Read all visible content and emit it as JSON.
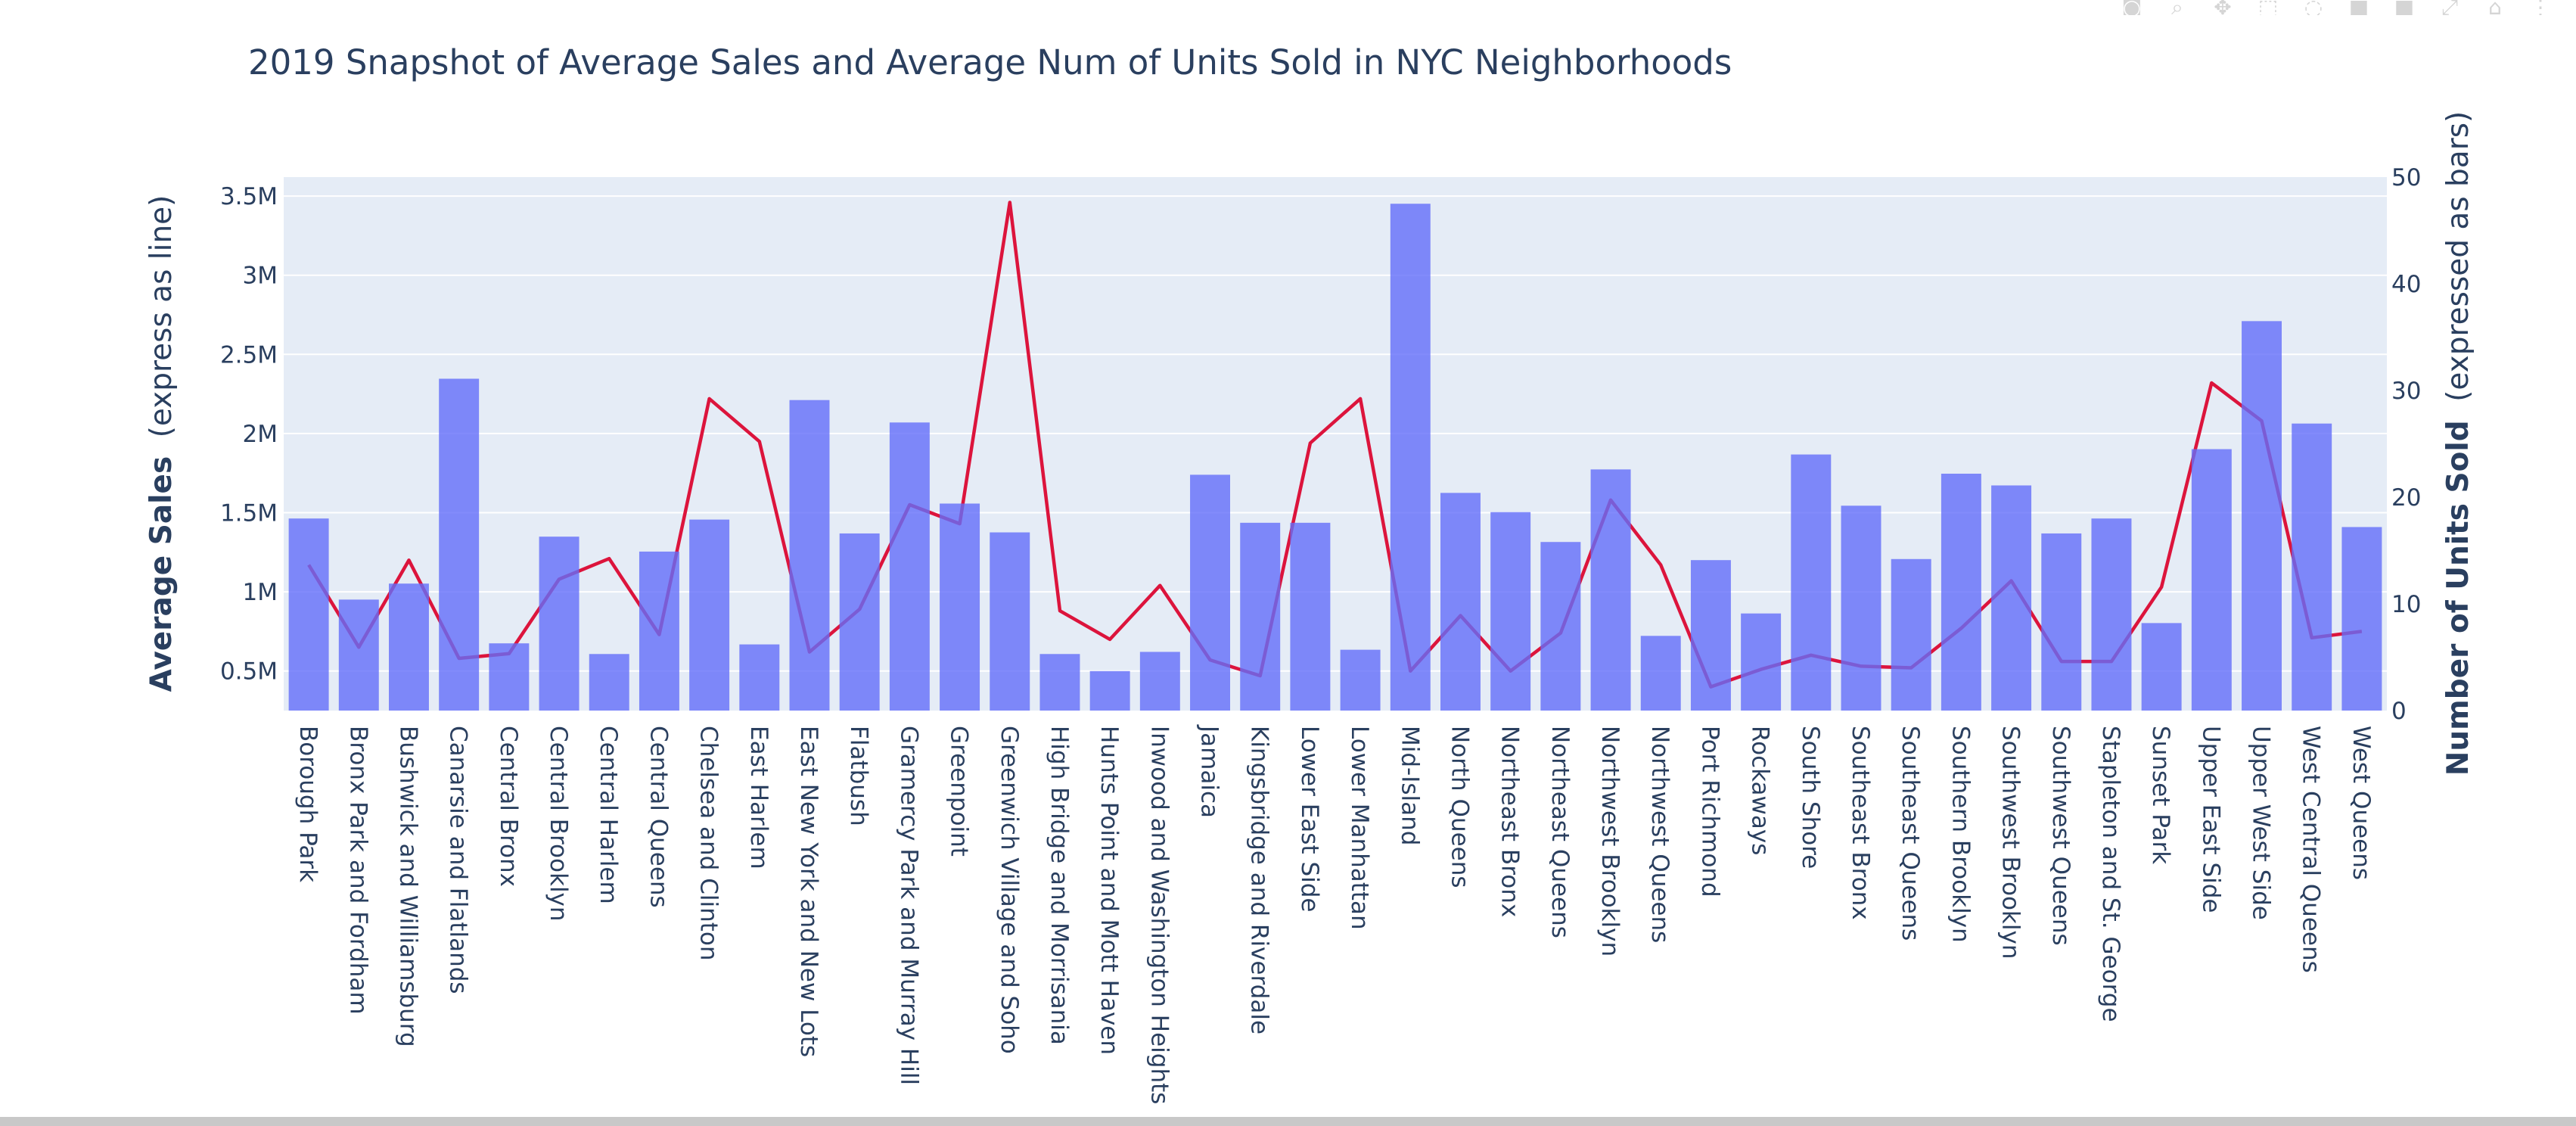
{
  "chart_data": {
    "type": "bar",
    "title": "2019 Snapshot of Average Sales and Average Num of Units Sold in NYC Neighborhoods",
    "ylabel_left_bold": "Average Sales",
    "ylabel_left_rest": "(express as line)",
    "ylabel_right_bold": "Number of Units Sold",
    "ylabel_right_rest": "(expressed as bars)",
    "y_left_range": [
      250000,
      3620000
    ],
    "y_right_range": [
      0,
      50
    ],
    "y_left_ticks": [
      {
        "value": 500000,
        "label": "0.5M"
      },
      {
        "value": 1000000,
        "label": "1M"
      },
      {
        "value": 1500000,
        "label": "1.5M"
      },
      {
        "value": 2000000,
        "label": "2M"
      },
      {
        "value": 2500000,
        "label": "2.5M"
      },
      {
        "value": 3000000,
        "label": "3M"
      },
      {
        "value": 3500000,
        "label": "3.5M"
      }
    ],
    "y_right_ticks": [
      {
        "value": 0,
        "label": "0"
      },
      {
        "value": 10,
        "label": "10"
      },
      {
        "value": 20,
        "label": "20"
      },
      {
        "value": 30,
        "label": "30"
      },
      {
        "value": 40,
        "label": "40"
      },
      {
        "value": 50,
        "label": "50"
      }
    ],
    "grid": true,
    "legend": "none",
    "colors": {
      "bar": "#636efa",
      "line": "#dc143c",
      "plot_bg": "#e5ecf6",
      "grid": "#ffffff",
      "text": "#2a3f5f"
    },
    "categories": [
      "Borough Park",
      "Bronx Park and Fordham",
      "Bushwick and Williamsburg",
      "Canarsie and Flatlands",
      "Central Bronx",
      "Central Brooklyn",
      "Central Harlem",
      "Central Queens",
      "Chelsea and Clinton",
      "East Harlem",
      "East New York and New Lots",
      "Flatbush",
      "Gramercy Park and Murray Hill",
      "Greenpoint",
      "Greenwich Village and Soho",
      "High Bridge and Morrisania",
      "Hunts Point and Mott Haven",
      "Inwood and Washington Heights",
      "Jamaica",
      "Kingsbridge and Riverdale",
      "Lower East Side",
      "Lower Manhattan",
      "Mid-Island",
      "North Queens",
      "Northeast Bronx",
      "Northeast Queens",
      "Northwest Brooklyn",
      "Northwest Queens",
      "Port Richmond",
      "Rockaways",
      "South Shore",
      "Southeast Bronx",
      "Southeast Queens",
      "Southern Brooklyn",
      "Southwest Brooklyn",
      "Southwest Queens",
      "Stapleton and St. George",
      "Sunset Park",
      "Upper East Side",
      "Upper West Side",
      "West Central Queens",
      "West Queens"
    ],
    "series": [
      {
        "type": "bar",
        "axis": "right",
        "values": [
          18,
          10.4,
          11.9,
          31.1,
          6.3,
          16.3,
          5.3,
          14.9,
          17.9,
          6.2,
          29.1,
          16.6,
          27,
          19.4,
          16.7,
          5.3,
          3.7,
          5.5,
          22.1,
          17.6,
          17.6,
          5.7,
          47.5,
          20.4,
          18.6,
          15.8,
          22.6,
          7,
          14.1,
          9.1,
          24,
          19.2,
          14.2,
          22.2,
          21.1,
          16.6,
          18,
          8.2,
          24.5,
          36.5,
          26.9,
          17.2
        ]
      },
      {
        "type": "line",
        "axis": "left",
        "values": [
          1170000,
          650000,
          1200000,
          580000,
          610000,
          1080000,
          1210000,
          730000,
          2220000,
          1950000,
          620000,
          890000,
          1550000,
          1430000,
          3460000,
          880000,
          700000,
          1040000,
          570000,
          470000,
          1940000,
          2220000,
          500000,
          850000,
          500000,
          740000,
          1580000,
          1170000,
          400000,
          510000,
          600000,
          530000,
          520000,
          770000,
          1070000,
          560000,
          560000,
          1030000,
          2320000,
          2080000,
          710000,
          750000
        ]
      }
    ]
  }
}
